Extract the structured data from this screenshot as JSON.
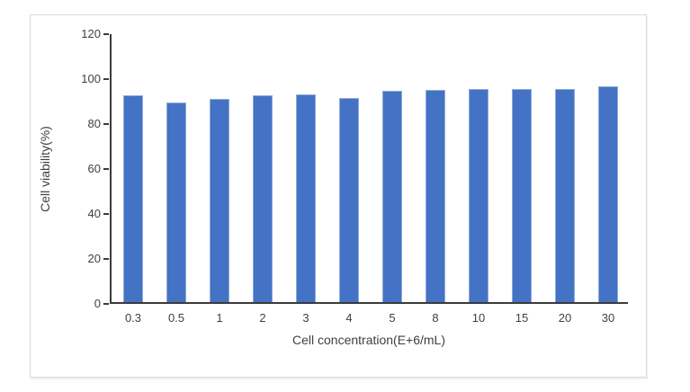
{
  "chart_data": {
    "type": "bar",
    "title": "",
    "categories": [
      "0.3",
      "0.5",
      "1",
      "2",
      "3",
      "4",
      "5",
      "8",
      "10",
      "15",
      "20",
      "30"
    ],
    "values": [
      92,
      89,
      90.5,
      92,
      92.5,
      91,
      94,
      94.5,
      95,
      95,
      95,
      96
    ],
    "xlabel": "Cell concentration(E+6/mL)",
    "ylabel": "Cell viability(%)",
    "ylim": [
      0,
      120
    ],
    "yticks": [
      0,
      20,
      40,
      60,
      80,
      100,
      120
    ],
    "grid": false,
    "legend": false,
    "colors": {
      "bar_fill": "#4472C4",
      "bar_border": "#8FAADC",
      "axis_line": "#3B3B3B",
      "tick_label": "#404040",
      "frame_border": "#D9D9D9",
      "background": "#FFFFFF"
    }
  }
}
